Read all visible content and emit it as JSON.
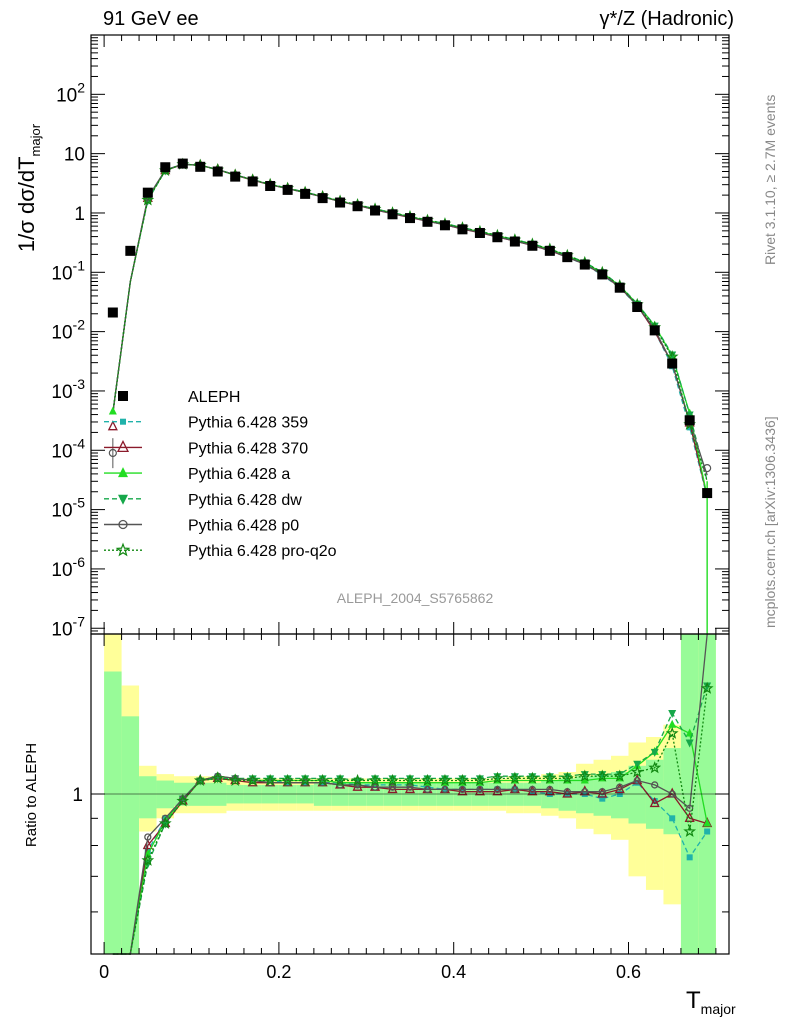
{
  "header": {
    "left": "91 GeV ee",
    "right": "γ*/Z (Hadronic)"
  },
  "side": {
    "rivet": "Rivet 3.1.10, ≥ 2.7M events",
    "mcplots": "mcplots.cern.ch [arXiv:1306.3436]"
  },
  "analysis_id": "ALEPH_2004_S5765862",
  "top_ylabel": {
    "prefix": "1/σ  dσ/dT",
    "sub": "major"
  },
  "ratio_ylabel": "Ratio to ALEPH",
  "xlabel": {
    "main": "T",
    "sub": "major"
  },
  "legend": [
    {
      "label": "ALEPH",
      "color": "#000000",
      "marker": "square",
      "dash": "none"
    },
    {
      "label": "Pythia 6.428 359",
      "color": "#20b2aa",
      "marker": "smallsquare",
      "dash": "dashed"
    },
    {
      "label": "Pythia 6.428 370",
      "color": "#8b1a2b",
      "marker": "triangle-open",
      "dash": "solid"
    },
    {
      "label": "Pythia 6.428 a",
      "color": "#22dd22",
      "marker": "triangle",
      "dash": "solid"
    },
    {
      "label": "Pythia 6.428 dw",
      "color": "#16a84a",
      "marker": "triangle-down",
      "dash": "dashed"
    },
    {
      "label": "Pythia 6.428 p0",
      "color": "#555555",
      "marker": "circle-open",
      "dash": "solid"
    },
    {
      "label": "Pythia 6.428 pro-q2o",
      "color": "#118811",
      "marker": "star",
      "dash": "dotted"
    }
  ],
  "chart_data": {
    "type": "scatter",
    "x_axis": {
      "ticks": [
        0,
        0.2,
        0.4,
        0.6
      ],
      "tick_labels": [
        "0",
        "0.2",
        "0.4",
        "0.6"
      ],
      "range": [
        -0.015,
        0.715
      ]
    },
    "top_axis": {
      "scale": "log",
      "range": [
        8e-08,
        1000
      ],
      "ticks": [
        1e-07,
        1e-06,
        1e-05,
        0.0001,
        0.001,
        0.01,
        0.1,
        1,
        10,
        100
      ],
      "tick_labels": [
        "10^-7",
        "10^-6",
        "10^-5",
        "10^-4",
        "10^-3",
        "10^-2",
        "10^-1",
        "1",
        "10",
        "10^2"
      ]
    },
    "ratio_axis": {
      "scale": "log",
      "range": [
        0.5,
        2.0
      ],
      "ticks": [
        1
      ],
      "tick_labels": [
        "1"
      ]
    },
    "x": [
      0.01,
      0.03,
      0.05,
      0.07,
      0.09,
      0.11,
      0.13,
      0.15,
      0.17,
      0.19,
      0.21,
      0.23,
      0.25,
      0.27,
      0.29,
      0.31,
      0.33,
      0.35,
      0.37,
      0.39,
      0.41,
      0.43,
      0.45,
      0.47,
      0.49,
      0.51,
      0.53,
      0.55,
      0.57,
      0.59,
      0.61,
      0.63,
      0.65,
      0.67,
      0.69
    ],
    "bins": [
      0,
      0.02,
      0.04,
      0.06,
      0.08,
      0.1,
      0.12,
      0.14,
      0.16,
      0.18,
      0.2,
      0.22,
      0.24,
      0.26,
      0.28,
      0.3,
      0.32,
      0.34,
      0.36,
      0.38,
      0.4,
      0.42,
      0.44,
      0.46,
      0.48,
      0.5,
      0.52,
      0.54,
      0.56,
      0.58,
      0.6,
      0.62,
      0.64,
      0.66,
      0.68,
      0.7
    ],
    "data": [
      0.021,
      0.23,
      2.2,
      5.9,
      6.8,
      6.0,
      5.0,
      4.1,
      3.4,
      2.85,
      2.45,
      2.1,
      1.78,
      1.5,
      1.3,
      1.1,
      0.95,
      0.82,
      0.71,
      0.62,
      0.53,
      0.46,
      0.39,
      0.33,
      0.28,
      0.23,
      0.18,
      0.135,
      0.092,
      0.055,
      0.026,
      0.0105,
      0.0029,
      0.00032,
      1.9e-05
    ],
    "band_inner": [
      [
        0.5,
        1.7
      ],
      [
        0.5,
        1.4
      ],
      [
        0.9,
        1.08
      ],
      [
        0.94,
        1.06
      ],
      [
        0.95,
        1.05
      ],
      [
        0.95,
        1.05
      ],
      [
        0.95,
        1.05
      ],
      [
        0.96,
        1.04
      ],
      [
        0.96,
        1.04
      ],
      [
        0.96,
        1.04
      ],
      [
        0.96,
        1.04
      ],
      [
        0.96,
        1.04
      ],
      [
        0.95,
        1.05
      ],
      [
        0.95,
        1.05
      ],
      [
        0.95,
        1.05
      ],
      [
        0.95,
        1.05
      ],
      [
        0.95,
        1.05
      ],
      [
        0.95,
        1.05
      ],
      [
        0.95,
        1.05
      ],
      [
        0.95,
        1.05
      ],
      [
        0.95,
        1.05
      ],
      [
        0.95,
        1.05
      ],
      [
        0.95,
        1.05
      ],
      [
        0.95,
        1.05
      ],
      [
        0.95,
        1.05
      ],
      [
        0.94,
        1.06
      ],
      [
        0.93,
        1.07
      ],
      [
        0.92,
        1.08
      ],
      [
        0.91,
        1.09
      ],
      [
        0.9,
        1.1
      ],
      [
        0.88,
        1.13
      ],
      [
        0.86,
        1.16
      ],
      [
        0.84,
        1.22
      ],
      [
        0.5,
        2.0
      ],
      [
        0.5,
        2.0
      ]
    ],
    "band_outer": [
      [
        0.5,
        2.0
      ],
      [
        0.5,
        1.6
      ],
      [
        0.85,
        1.13
      ],
      [
        0.9,
        1.09
      ],
      [
        0.92,
        1.08
      ],
      [
        0.92,
        1.08
      ],
      [
        0.92,
        1.08
      ],
      [
        0.93,
        1.07
      ],
      [
        0.93,
        1.07
      ],
      [
        0.93,
        1.07
      ],
      [
        0.93,
        1.07
      ],
      [
        0.93,
        1.07
      ],
      [
        0.93,
        1.07
      ],
      [
        0.93,
        1.07
      ],
      [
        0.93,
        1.07
      ],
      [
        0.93,
        1.07
      ],
      [
        0.93,
        1.07
      ],
      [
        0.93,
        1.07
      ],
      [
        0.93,
        1.07
      ],
      [
        0.93,
        1.07
      ],
      [
        0.93,
        1.07
      ],
      [
        0.93,
        1.07
      ],
      [
        0.93,
        1.07
      ],
      [
        0.92,
        1.08
      ],
      [
        0.92,
        1.08
      ],
      [
        0.91,
        1.09
      ],
      [
        0.9,
        1.1
      ],
      [
        0.86,
        1.14
      ],
      [
        0.84,
        1.16
      ],
      [
        0.82,
        1.18
      ],
      [
        0.7,
        1.25
      ],
      [
        0.66,
        1.28
      ],
      [
        0.62,
        1.35
      ],
      [
        0.5,
        2.0
      ],
      [
        0.5,
        2.0
      ]
    ],
    "series": [
      {
        "name": "Pythia 6.428 359",
        "ratio": [
          0.02,
          0.3,
          0.78,
          0.9,
          0.98,
          1.06,
          1.08,
          1.07,
          1.06,
          1.06,
          1.05,
          1.05,
          1.05,
          1.05,
          1.04,
          1.04,
          1.04,
          1.04,
          1.03,
          1.02,
          1.02,
          1.02,
          1.02,
          1.02,
          1.01,
          1.0,
          1.0,
          1.0,
          0.98,
          1.0,
          1.05,
          0.97,
          0.9,
          0.76,
          0.85
        ]
      },
      {
        "name": "Pythia 6.428 370",
        "ratio": [
          0.02,
          0.3,
          0.8,
          0.88,
          0.97,
          1.06,
          1.07,
          1.06,
          1.05,
          1.05,
          1.05,
          1.05,
          1.05,
          1.04,
          1.03,
          1.03,
          1.02,
          1.02,
          1.02,
          1.02,
          1.01,
          1.01,
          1.01,
          1.02,
          1.01,
          1.01,
          1.0,
          1.01,
          1.0,
          1.02,
          1.06,
          0.96,
          1.0,
          0.9,
          0.88
        ]
      },
      {
        "name": "Pythia 6.428 a",
        "ratio": [
          0.02,
          0.3,
          0.77,
          0.89,
          0.98,
          1.06,
          1.08,
          1.07,
          1.06,
          1.06,
          1.06,
          1.06,
          1.06,
          1.05,
          1.05,
          1.05,
          1.05,
          1.05,
          1.05,
          1.05,
          1.05,
          1.05,
          1.06,
          1.06,
          1.06,
          1.06,
          1.06,
          1.06,
          1.07,
          1.07,
          1.13,
          1.2,
          1.35,
          1.3,
          0.88
        ]
      },
      {
        "name": "Pythia 6.428 dw",
        "ratio": [
          0.02,
          0.3,
          0.74,
          0.88,
          0.98,
          1.06,
          1.07,
          1.07,
          1.07,
          1.07,
          1.07,
          1.07,
          1.07,
          1.07,
          1.06,
          1.07,
          1.07,
          1.07,
          1.07,
          1.07,
          1.07,
          1.07,
          1.08,
          1.08,
          1.08,
          1.08,
          1.08,
          1.09,
          1.09,
          1.09,
          1.14,
          1.2,
          1.42,
          1.25,
          1.6
        ]
      },
      {
        "name": "Pythia 6.428 p0",
        "ratio": [
          0.02,
          0.3,
          0.83,
          0.9,
          0.98,
          1.06,
          1.08,
          1.07,
          1.06,
          1.05,
          1.05,
          1.05,
          1.05,
          1.04,
          1.04,
          1.03,
          1.03,
          1.03,
          1.02,
          1.02,
          1.02,
          1.02,
          1.02,
          1.02,
          1.02,
          1.02,
          1.01,
          1.01,
          1.01,
          1.03,
          1.06,
          1.04,
          1.0,
          0.94,
          2.0
        ]
      },
      {
        "name": "Pythia 6.428 pro-q2o",
        "ratio": [
          0.02,
          0.3,
          0.75,
          0.88,
          0.97,
          1.06,
          1.07,
          1.06,
          1.06,
          1.06,
          1.06,
          1.06,
          1.06,
          1.06,
          1.06,
          1.06,
          1.06,
          1.06,
          1.06,
          1.06,
          1.06,
          1.06,
          1.07,
          1.07,
          1.07,
          1.07,
          1.07,
          1.08,
          1.08,
          1.08,
          1.1,
          1.12,
          1.3,
          0.85,
          1.58
        ]
      }
    ],
    "series_first_main": [
      0.00025,
      0.065,
      1.6,
      5.0,
      6.6,
      6.4,
      5.4,
      4.4,
      3.6,
      3.0,
      2.57,
      2.2,
      1.87,
      1.57,
      1.36,
      1.15,
      0.99,
      0.85,
      0.73,
      0.64,
      0.54,
      0.47,
      0.4,
      0.34,
      0.29,
      0.24,
      0.185,
      0.138,
      0.095,
      0.058,
      0.028,
      0.012,
      0.0036,
      0.00028,
      5e-05
    ],
    "grid": false,
    "legend_position": "lower-left"
  }
}
